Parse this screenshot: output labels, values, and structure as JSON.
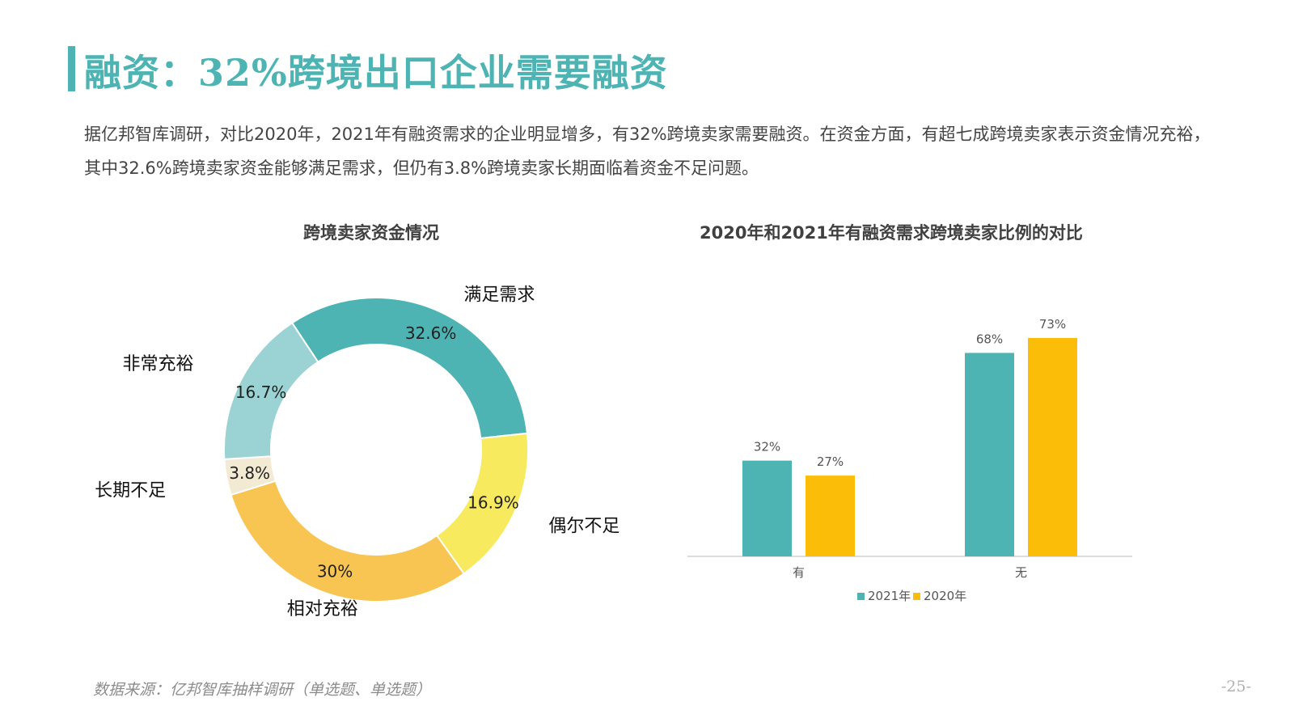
{
  "header": {
    "title": "融资：32%跨境出口企业需要融资",
    "intro": "据亿邦智库调研，对比2020年，2021年有融资需求的企业明显增多，有32%跨境卖家需要融资。在资金方面，有超七成跨境卖家表示资金情况充裕，其中32.6%跨境卖家资金能够满足需求，但仍有3.8%跨境卖家长期面临着资金不足问题。"
  },
  "colors": {
    "accent": "#4db3b3",
    "teal": "#4db3b3",
    "yellow": "#fbbd08"
  },
  "chart_data": [
    {
      "type": "pie",
      "title": "跨境卖家资金情况",
      "slices": [
        {
          "label": "满足需求",
          "value": 32.6,
          "value_label": "32.6%",
          "color": "#4db3b3"
        },
        {
          "label": "偶尔不足",
          "value": 16.9,
          "value_label": "16.9%",
          "color": "#f7ea5e"
        },
        {
          "label": "相对充裕",
          "value": 30.0,
          "value_label": "30%",
          "color": "#f8c553"
        },
        {
          "label": "长期不足",
          "value": 3.8,
          "value_label": "3.8%",
          "color": "#f3ead3"
        },
        {
          "label": "非常充裕",
          "value": 16.7,
          "value_label": "16.7%",
          "color": "#9bd2d3"
        }
      ]
    },
    {
      "type": "bar",
      "title": "2020年和2021年有融资需求跨境卖家比例的对比",
      "categories": [
        "有",
        "无"
      ],
      "series": [
        {
          "name": "2021年",
          "values": [
            32,
            68
          ],
          "labels": [
            "32%",
            "68%"
          ],
          "color": "#4db3b3"
        },
        {
          "name": "2020年",
          "values": [
            27,
            73
          ],
          "labels": [
            "27%",
            "73%"
          ],
          "color": "#fbbd08"
        }
      ],
      "ylim": [
        0,
        100
      ],
      "grid": false,
      "legend": "bottom"
    }
  ],
  "footer": {
    "source": "数据来源：亿邦智库抽样调研（单选题、单选题）",
    "page_number": "-25-"
  }
}
